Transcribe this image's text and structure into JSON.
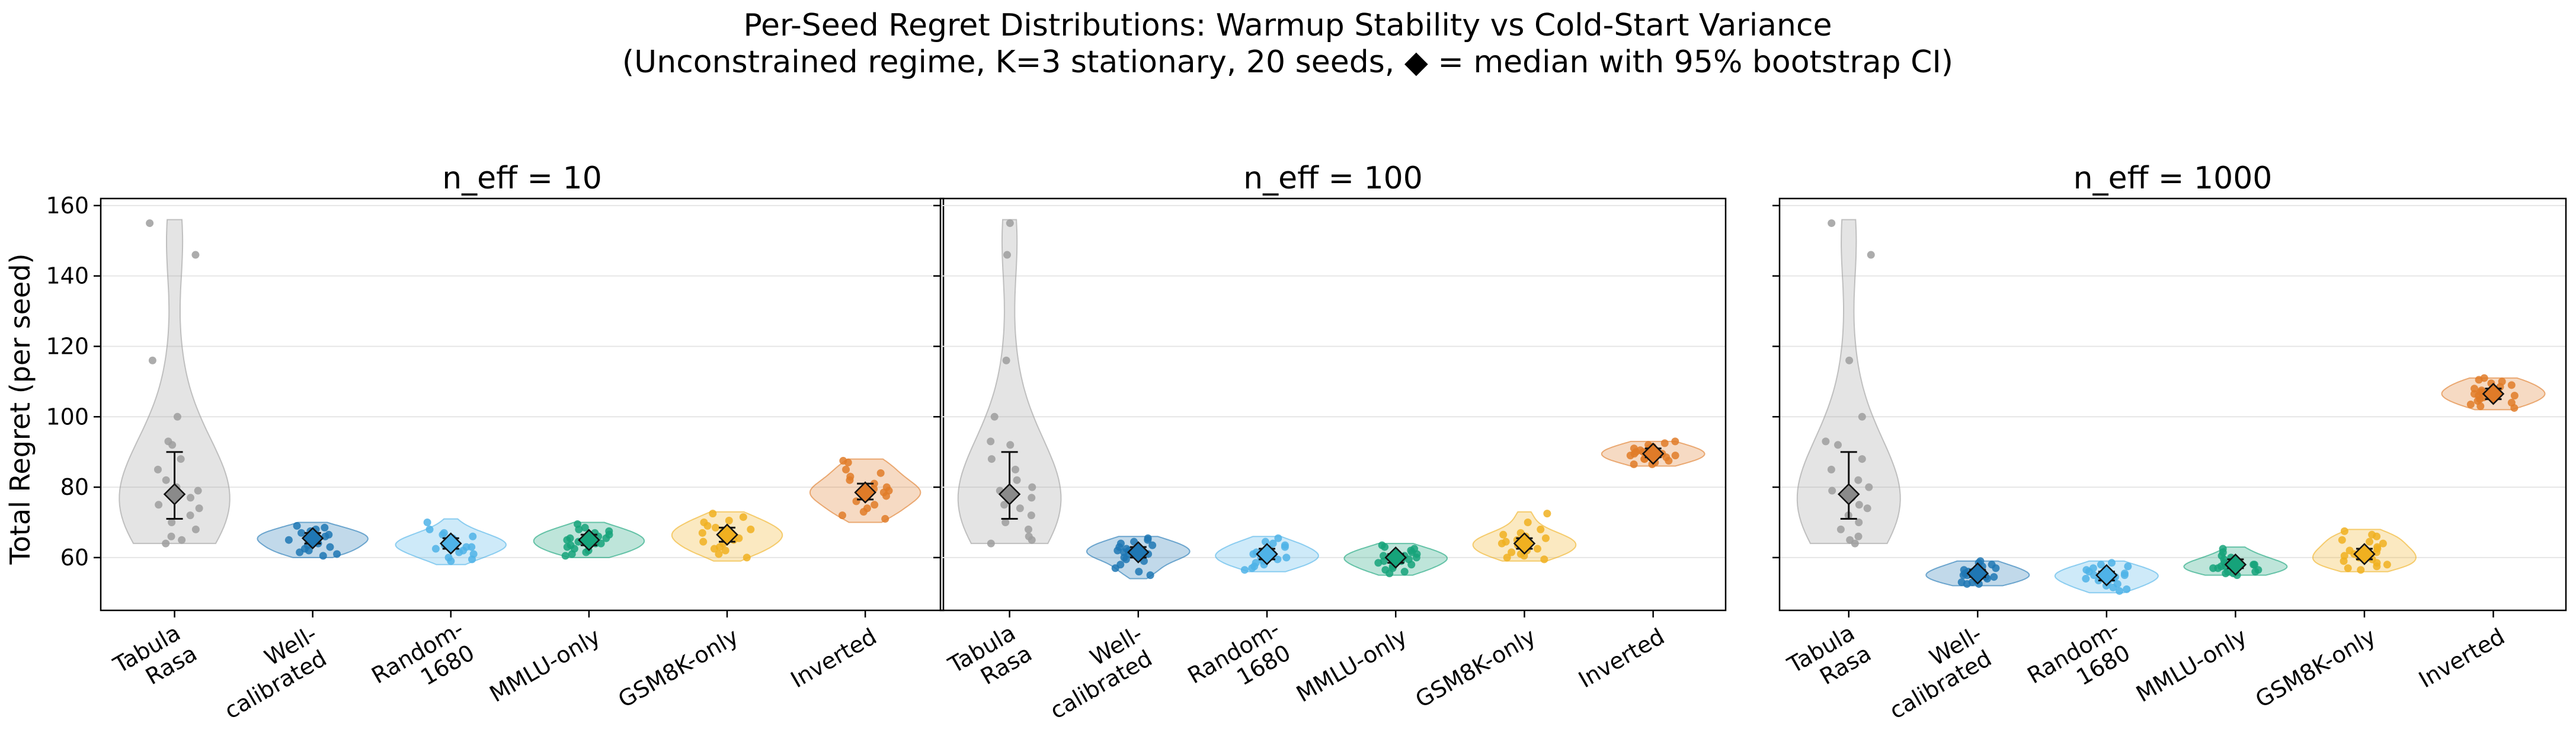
{
  "figure": {
    "title_line1": "Per-Seed Regret Distributions: Warmup Stability vs Cold-Start Variance",
    "title_line2": "(Unconstrained regime, K=3 stationary, 20 seeds, ◆ = median with 95% bootstrap CI)"
  },
  "chart_data": {
    "type": "violin",
    "ylabel": "Total Regret (per seed)",
    "ylim": [
      45,
      162
    ],
    "yticks": [
      60,
      80,
      100,
      120,
      140,
      160
    ],
    "grid": "horizontal",
    "categories": [
      {
        "id": "tabula",
        "lines": [
          "Tabula",
          "Rasa"
        ]
      },
      {
        "id": "well",
        "lines": [
          "Well-",
          "calibrated"
        ]
      },
      {
        "id": "random",
        "lines": [
          "Random-",
          "1680"
        ]
      },
      {
        "id": "mmlu",
        "lines": [
          "MMLU-only"
        ]
      },
      {
        "id": "gsm",
        "lines": [
          "GSM8K-only"
        ]
      },
      {
        "id": "inverted",
        "lines": [
          "Inverted"
        ]
      }
    ],
    "colors": {
      "tabula": "#9e9e9e",
      "well": "#1f77b4",
      "random": "#4fb3e8",
      "mmlu": "#16a37a",
      "gsm": "#f0b020",
      "inverted": "#e07b28"
    },
    "panels": [
      {
        "title": "n_eff = 10",
        "series": [
          {
            "id": "tabula",
            "median": 78,
            "ci": [
              71,
              90
            ],
            "min": 64,
            "max": 156,
            "seeds": [
              155,
              146,
              116,
              100,
              93,
              92,
              88,
              85,
              82,
              80,
              79,
              77,
              75,
              74,
              72,
              70,
              68,
              66,
              65,
              64
            ]
          },
          {
            "id": "well",
            "median": 65.5,
            "ci": [
              64,
              67
            ],
            "min": 60,
            "max": 70,
            "seeds": [
              69,
              68.5,
              68,
              67.5,
              67,
              66.5,
              66,
              66,
              65.5,
              65,
              65,
              64.5,
              64,
              63.5,
              63,
              62.5,
              62,
              61.5,
              61,
              60.5
            ]
          },
          {
            "id": "random",
            "median": 64,
            "ci": [
              62.5,
              65.5
            ],
            "min": 58,
            "max": 71,
            "seeds": [
              70,
              68,
              67,
              66.5,
              66,
              65.5,
              65,
              64.5,
              64,
              64,
              63.5,
              63,
              63,
              62.5,
              62,
              61.5,
              61,
              60,
              59.5,
              59
            ]
          },
          {
            "id": "mmlu",
            "median": 65,
            "ci": [
              63.5,
              66.5
            ],
            "min": 60,
            "max": 70,
            "seeds": [
              69.5,
              68.5,
              68,
              67.5,
              67,
              66.5,
              66,
              65.5,
              65.5,
              65,
              64.5,
              64,
              64,
              63.5,
              63,
              62.5,
              62,
              61.5,
              61,
              60.5
            ]
          },
          {
            "id": "gsm",
            "median": 66.5,
            "ci": [
              64.5,
              68.5
            ],
            "min": 59,
            "max": 73,
            "seeds": [
              72.5,
              71.5,
              70.5,
              70,
              69,
              68.5,
              68,
              67.5,
              67,
              66.5,
              66,
              65.5,
              65,
              64.5,
              64,
              63,
              62.5,
              62,
              61,
              60
            ]
          },
          {
            "id": "inverted",
            "median": 78.5,
            "ci": [
              76.5,
              81
            ],
            "min": 70,
            "max": 88,
            "seeds": [
              87.5,
              87,
              85,
              84,
              83,
              82,
              81,
              80,
              79.5,
              79,
              78.5,
              78,
              77.5,
              77,
              76,
              75,
              74,
              73,
              72,
              71
            ]
          }
        ]
      },
      {
        "title": "n_eff = 100",
        "series": [
          {
            "id": "tabula",
            "median": 78,
            "ci": [
              71,
              90
            ],
            "min": 64,
            "max": 156,
            "seeds": [
              155,
              146,
              116,
              100,
              93,
              92,
              88,
              85,
              82,
              80,
              79,
              77,
              75,
              74,
              72,
              70,
              68,
              66,
              65,
              64
            ]
          },
          {
            "id": "well",
            "median": 61.5,
            "ci": [
              60,
              63
            ],
            "min": 54,
            "max": 66,
            "seeds": [
              65.5,
              65,
              64.5,
              64,
              63.5,
              63,
              62.5,
              62,
              62,
              61.5,
              61,
              61,
              60.5,
              60,
              59.5,
              59,
              58,
              57,
              56,
              55
            ]
          },
          {
            "id": "random",
            "median": 61,
            "ci": [
              59.5,
              62.5
            ],
            "min": 56,
            "max": 66,
            "seeds": [
              65.5,
              64.5,
              64,
              63.5,
              63,
              62.5,
              62,
              61.5,
              61,
              61,
              60.5,
              60,
              60,
              59.5,
              59,
              58.5,
              58,
              57.5,
              57,
              56.5
            ]
          },
          {
            "id": "mmlu",
            "median": 60,
            "ci": [
              58.5,
              61
            ],
            "min": 55,
            "max": 64,
            "seeds": [
              63.5,
              63,
              62.5,
              62,
              61.5,
              61,
              60.5,
              60.5,
              60,
              60,
              59.5,
              59,
              59,
              58.5,
              58,
              57.5,
              57,
              56.5,
              56,
              55.5
            ]
          },
          {
            "id": "gsm",
            "median": 64,
            "ci": [
              62.5,
              65.5
            ],
            "min": 59,
            "max": 73,
            "seeds": [
              72.5,
              70,
              68,
              67,
              66.5,
              66,
              65.5,
              65,
              64.5,
              64,
              64,
              63.5,
              63,
              62.5,
              62,
              61.5,
              61,
              60.5,
              60,
              59.5
            ]
          },
          {
            "id": "inverted",
            "median": 89.5,
            "ci": [
              88.5,
              91
            ],
            "min": 86,
            "max": 93,
            "seeds": [
              93,
              92.5,
              92,
              91.5,
              91,
              91,
              90.5,
              90,
              90,
              89.5,
              89.5,
              89,
              89,
              88.5,
              88,
              88,
              87.5,
              87,
              86.5,
              86.5
            ]
          }
        ]
      },
      {
        "title": "n_eff = 1000",
        "series": [
          {
            "id": "tabula",
            "median": 78,
            "ci": [
              71,
              90
            ],
            "min": 64,
            "max": 156,
            "seeds": [
              155,
              146,
              116,
              100,
              93,
              92,
              88,
              85,
              82,
              80,
              79,
              77,
              75,
              74,
              72,
              70,
              68,
              66,
              65,
              64
            ]
          },
          {
            "id": "well",
            "median": 55.5,
            "ci": [
              54.5,
              56.5
            ],
            "min": 52,
            "max": 59,
            "seeds": [
              59,
              58.5,
              58,
              57.5,
              57,
              56.5,
              56,
              56,
              55.5,
              55.5,
              55,
              55,
              54.5,
              54.5,
              54,
              53.5,
              53,
              53,
              52.5,
              52.5
            ]
          },
          {
            "id": "random",
            "median": 55,
            "ci": [
              53.5,
              56
            ],
            "min": 50,
            "max": 59,
            "seeds": [
              58.5,
              58,
              57.5,
              57,
              56.5,
              56,
              55.5,
              55.5,
              55,
              55,
              54.5,
              54,
              54,
              53.5,
              53,
              52.5,
              52,
              51.5,
              51,
              50.5
            ]
          },
          {
            "id": "mmlu",
            "median": 58,
            "ci": [
              57,
              59.5
            ],
            "min": 55,
            "max": 63,
            "seeds": [
              62.5,
              61.5,
              60.5,
              60,
              59.5,
              59,
              58.5,
              58.5,
              58,
              58,
              57.5,
              57.5,
              57,
              57,
              56.5,
              56,
              56,
              55.5,
              55.5,
              55
            ]
          },
          {
            "id": "gsm",
            "median": 61,
            "ci": [
              59.5,
              62.5
            ],
            "min": 56,
            "max": 68,
            "seeds": [
              67.5,
              66.5,
              66,
              65,
              64.5,
              64,
              63,
              62.5,
              62,
              61.5,
              61,
              60.5,
              60,
              59.5,
              59,
              58.5,
              58,
              57.5,
              57,
              56.5
            ]
          },
          {
            "id": "inverted",
            "median": 106.5,
            "ci": [
              105,
              108
            ],
            "min": 102,
            "max": 111,
            "seeds": [
              111,
              110.5,
              110,
              109.5,
              109,
              108.5,
              108,
              107.5,
              107,
              107,
              106.5,
              106,
              106,
              105.5,
              105,
              104.5,
              104,
              103.5,
              103,
              102.5
            ]
          }
        ]
      }
    ]
  }
}
